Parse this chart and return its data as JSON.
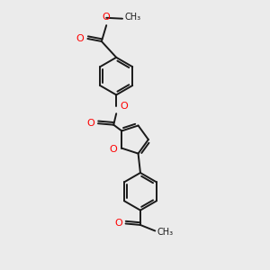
{
  "bg_color": "#ebebeb",
  "bond_color": "#1a1a1a",
  "heteroatom_color": "#ff0000",
  "bond_width": 1.4,
  "figsize": [
    3.0,
    3.0
  ],
  "dpi": 100,
  "xlim": [
    0,
    10
  ],
  "ylim": [
    0,
    10
  ]
}
